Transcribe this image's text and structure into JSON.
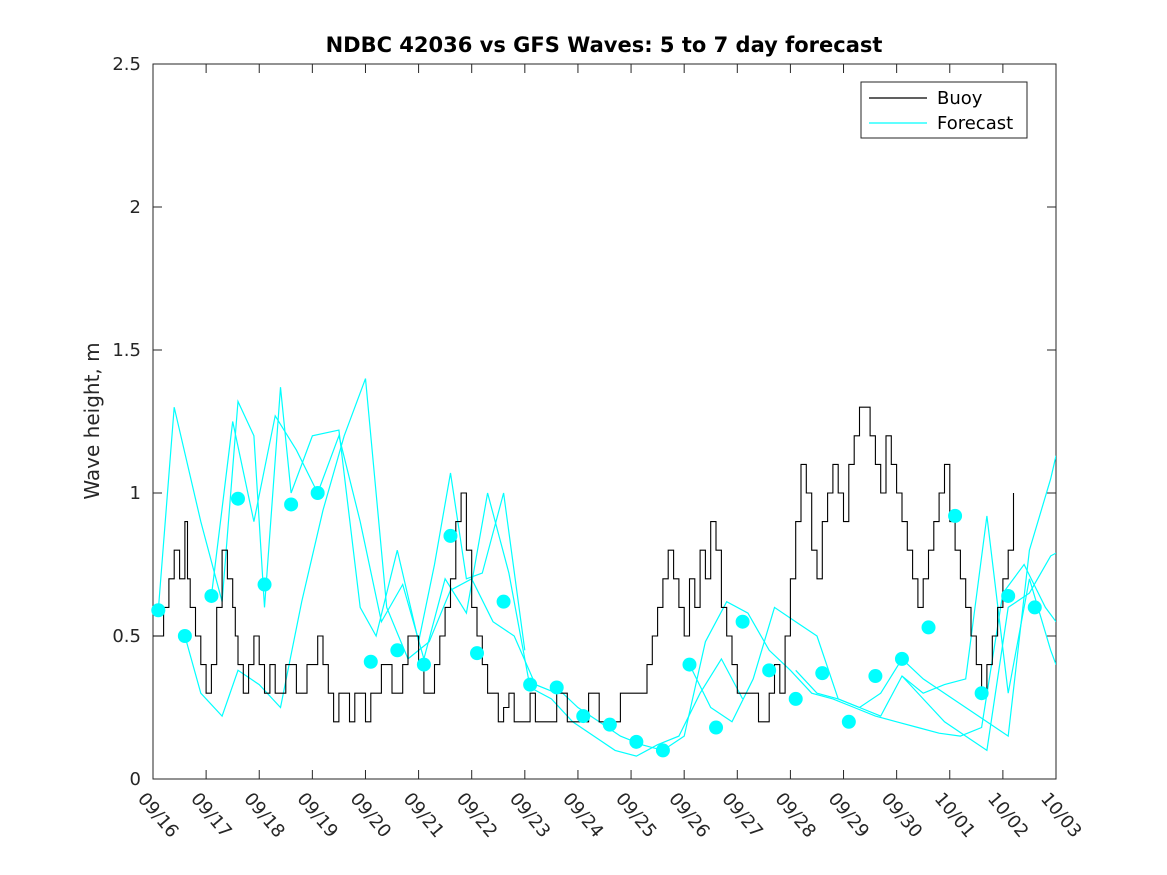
{
  "chart_data": {
    "type": "line",
    "title": "NDBC 42036 vs GFS Waves: 5 to 7 day forecast",
    "xlabel": "",
    "ylabel": "Wave height, m",
    "xlim": [
      0,
      17
    ],
    "ylim": [
      0,
      2.5
    ],
    "yticks": [
      0,
      0.5,
      1,
      1.5,
      2,
      2.5
    ],
    "ytick_labels": [
      "0",
      "0.5",
      "1",
      "1.5",
      "2",
      "2.5"
    ],
    "xtick_labels": [
      "09/16",
      "09/17",
      "09/18",
      "09/19",
      "09/20",
      "09/21",
      "09/22",
      "09/23",
      "09/24",
      "09/25",
      "09/26",
      "09/27",
      "09/28",
      "09/29",
      "09/30",
      "10/01",
      "10/02",
      "10/03"
    ],
    "legend": {
      "placement": "top-right",
      "entries": [
        "Buoy",
        "Forecast"
      ]
    },
    "colors": {
      "buoy": "#000000",
      "forecast": "#00ffff",
      "axis": "#262626"
    },
    "series": [
      {
        "name": "Buoy",
        "x": [
          0,
          0.2,
          0.3,
          0.4,
          0.5,
          0.6,
          0.65,
          0.7,
          0.8,
          0.9,
          0.95,
          1.0,
          1.1,
          1.2,
          1.3,
          1.4,
          1.5,
          1.55,
          1.6,
          1.7,
          1.8,
          1.9,
          2.0,
          2.1,
          2.2,
          2.3,
          2.4,
          2.5,
          2.6,
          2.7,
          2.8,
          2.9,
          3.0,
          3.1,
          3.2,
          3.3,
          3.4,
          3.5,
          3.6,
          3.7,
          3.8,
          3.9,
          4.0,
          4.1,
          4.2,
          4.3,
          4.4,
          4.5,
          4.6,
          4.7,
          4.8,
          4.9,
          5.0,
          5.1,
          5.2,
          5.3,
          5.4,
          5.5,
          5.6,
          5.7,
          5.8,
          5.9,
          6.0,
          6.1,
          6.2,
          6.3,
          6.4,
          6.5,
          6.6,
          6.7,
          6.8,
          6.9,
          7.0,
          7.1,
          7.2,
          7.3,
          7.4,
          7.5,
          7.6,
          7.7,
          7.8,
          7.9,
          8.0,
          8.1,
          8.2,
          8.3,
          8.4,
          8.5,
          8.6,
          8.7,
          8.8,
          8.9,
          9.0,
          9.1,
          9.2,
          9.3,
          9.4,
          9.5,
          9.6,
          9.7,
          9.8,
          9.9,
          10.0,
          10.1,
          10.2,
          10.3,
          10.4,
          10.5,
          10.6,
          10.7,
          10.8,
          10.9,
          11.0,
          11.1,
          11.2,
          11.3,
          11.4,
          11.5,
          11.6,
          11.7,
          11.8,
          11.9,
          12.0,
          12.1,
          12.2,
          12.3,
          12.4,
          12.5,
          12.6,
          12.7,
          12.8,
          12.9,
          13.0,
          13.1,
          13.2,
          13.3,
          13.4,
          13.5,
          13.6,
          13.7,
          13.8,
          13.9,
          14.0,
          14.1,
          14.2,
          14.3,
          14.4,
          14.5,
          14.6,
          14.7,
          14.8,
          14.9,
          15.0,
          15.1,
          15.2,
          15.3,
          15.4,
          15.5,
          15.6,
          15.7,
          15.8,
          15.9,
          16.0,
          16.1,
          16.2
        ],
        "values": [
          0.5,
          0.6,
          0.7,
          0.8,
          0.7,
          0.9,
          0.7,
          0.6,
          0.5,
          0.4,
          0.4,
          0.3,
          0.4,
          0.6,
          0.8,
          0.7,
          0.6,
          0.5,
          0.4,
          0.3,
          0.4,
          0.5,
          0.4,
          0.3,
          0.4,
          0.3,
          0.3,
          0.4,
          0.4,
          0.3,
          0.3,
          0.4,
          0.4,
          0.5,
          0.4,
          0.3,
          0.2,
          0.3,
          0.3,
          0.2,
          0.3,
          0.3,
          0.2,
          0.3,
          0.3,
          0.4,
          0.4,
          0.3,
          0.3,
          0.4,
          0.5,
          0.5,
          0.4,
          0.3,
          0.3,
          0.4,
          0.5,
          0.6,
          0.7,
          0.9,
          1.0,
          0.8,
          0.6,
          0.5,
          0.4,
          0.3,
          0.3,
          0.2,
          0.25,
          0.3,
          0.2,
          0.2,
          0.2,
          0.3,
          0.2,
          0.2,
          0.2,
          0.2,
          0.3,
          0.3,
          0.2,
          0.2,
          0.2,
          0.2,
          0.3,
          0.3,
          0.2,
          0.2,
          0.2,
          0.2,
          0.3,
          0.3,
          0.3,
          0.3,
          0.3,
          0.4,
          0.5,
          0.6,
          0.7,
          0.8,
          0.7,
          0.6,
          0.5,
          0.7,
          0.6,
          0.8,
          0.7,
          0.9,
          0.8,
          0.6,
          0.5,
          0.4,
          0.3,
          0.3,
          0.3,
          0.3,
          0.2,
          0.2,
          0.3,
          0.4,
          0.3,
          0.5,
          0.7,
          0.9,
          1.1,
          1.0,
          0.8,
          0.7,
          0.9,
          1.0,
          1.1,
          1.0,
          0.9,
          1.1,
          1.2,
          1.3,
          1.3,
          1.2,
          1.1,
          1.0,
          1.2,
          1.1,
          1.0,
          0.9,
          0.8,
          0.7,
          0.6,
          0.7,
          0.8,
          0.9,
          1.0,
          1.1,
          0.9,
          0.8,
          0.7,
          0.6,
          0.5,
          0.4,
          0.3,
          0.4,
          0.5,
          0.6,
          0.7,
          0.8,
          1.0
        ]
      },
      {
        "name": "Forecast",
        "markers": {
          "x": [
            0.1,
            0.6,
            1.1,
            1.6,
            2.1,
            2.6,
            3.1,
            4.1,
            4.6,
            5.1,
            5.6,
            6.1,
            6.6,
            7.1,
            7.6,
            8.1,
            8.6,
            9.1,
            9.6,
            10.1,
            10.6,
            11.1,
            11.6,
            12.1,
            12.6,
            13.1,
            13.6,
            14.1,
            14.6,
            15.1,
            15.6,
            16.1,
            16.6
          ],
          "values": [
            0.59,
            0.5,
            0.64,
            0.98,
            0.68,
            0.96,
            1.0,
            0.41,
            0.45,
            0.4,
            0.85,
            0.44,
            0.62,
            0.33,
            0.32,
            0.22,
            0.19,
            0.13,
            0.1,
            0.4,
            0.18,
            0.55,
            0.38,
            0.28,
            0.37,
            0.2,
            0.36,
            0.42,
            0.53,
            0.92,
            0.3,
            0.64,
            0.6
          ]
        },
        "runs": [
          {
            "x": [
              0.1,
              0.4,
              0.9,
              1.3,
              1.6,
              1.9,
              2.1,
              2.4,
              2.6,
              3.0,
              3.5,
              3.9,
              4.2,
              4.6,
              5.0,
              5.3,
              5.6,
              5.9,
              6.2,
              6.6,
              7.0
            ],
            "values": [
              0.59,
              1.3,
              0.9,
              0.62,
              1.32,
              1.2,
              0.6,
              1.37,
              1.0,
              1.2,
              1.22,
              0.6,
              0.5,
              0.8,
              0.48,
              0.75,
              1.07,
              0.7,
              0.72,
              1.0,
              0.45
            ]
          },
          {
            "x": [
              0.6,
              0.9,
              1.3,
              1.6,
              2.0,
              2.4,
              2.8,
              3.2,
              3.6,
              4.0,
              4.4,
              4.8,
              5.2,
              5.6,
              6.0,
              6.4,
              6.8,
              7.2,
              7.6
            ],
            "values": [
              0.5,
              0.3,
              0.22,
              0.38,
              0.33,
              0.25,
              0.62,
              0.94,
              1.2,
              1.4,
              0.6,
              0.42,
              0.48,
              0.66,
              0.7,
              0.55,
              0.5,
              0.33,
              0.3
            ]
          },
          {
            "x": [
              1.1,
              1.5,
              1.9,
              2.3,
              2.7,
              3.1,
              3.5,
              3.9,
              4.3,
              4.7,
              5.1,
              5.5,
              5.9,
              6.3,
              6.7,
              7.1,
              7.5,
              7.9,
              8.3,
              8.7,
              9.1,
              9.5,
              9.9,
              10.3,
              10.7,
              11.1
            ],
            "values": [
              0.64,
              1.25,
              0.9,
              1.27,
              1.15,
              1.0,
              1.2,
              0.9,
              0.55,
              0.68,
              0.42,
              0.7,
              0.58,
              1.0,
              0.72,
              0.32,
              0.28,
              0.2,
              0.15,
              0.1,
              0.08,
              0.12,
              0.15,
              0.3,
              0.42,
              0.28
            ]
          },
          {
            "x": [
              7.6,
              8.0,
              8.4,
              8.8,
              9.2,
              9.6,
              10.0,
              10.4,
              10.8,
              11.2,
              11.6,
              12.0,
              12.4,
              12.8,
              13.2,
              13.6,
              14.0,
              14.4,
              14.8,
              15.2,
              15.6,
              16.0,
              16.4,
              16.8,
              17.0
            ],
            "values": [
              0.32,
              0.25,
              0.2,
              0.15,
              0.12,
              0.1,
              0.15,
              0.48,
              0.62,
              0.58,
              0.45,
              0.38,
              0.3,
              0.28,
              0.25,
              0.22,
              0.2,
              0.18,
              0.16,
              0.15,
              0.18,
              0.65,
              0.75,
              0.6,
              0.55
            ]
          },
          {
            "x": [
              10.1,
              10.5,
              10.9,
              11.3,
              11.7,
              12.1,
              12.5,
              12.9,
              13.3,
              13.7,
              14.1,
              14.5,
              14.9,
              15.3,
              15.7,
              16.1,
              16.5,
              16.9,
              17.0
            ],
            "values": [
              0.4,
              0.25,
              0.2,
              0.35,
              0.6,
              0.55,
              0.5,
              0.28,
              0.25,
              0.3,
              0.42,
              0.35,
              0.3,
              0.25,
              0.2,
              0.15,
              0.8,
              1.05,
              1.13
            ]
          },
          {
            "x": [
              12.1,
              12.5,
              12.9,
              13.3,
              13.7,
              14.1,
              14.5,
              14.9,
              15.3,
              15.7,
              16.1,
              16.5,
              16.9,
              17.0
            ],
            "values": [
              0.38,
              0.3,
              0.28,
              0.25,
              0.22,
              0.36,
              0.3,
              0.33,
              0.35,
              0.92,
              0.3,
              0.7,
              0.45,
              0.4
            ]
          },
          {
            "x": [
              14.1,
              14.5,
              14.9,
              15.3,
              15.7,
              16.1,
              16.5,
              16.9,
              17.0
            ],
            "values": [
              0.36,
              0.28,
              0.2,
              0.15,
              0.1,
              0.6,
              0.65,
              0.78,
              0.79
            ]
          }
        ]
      }
    ]
  }
}
